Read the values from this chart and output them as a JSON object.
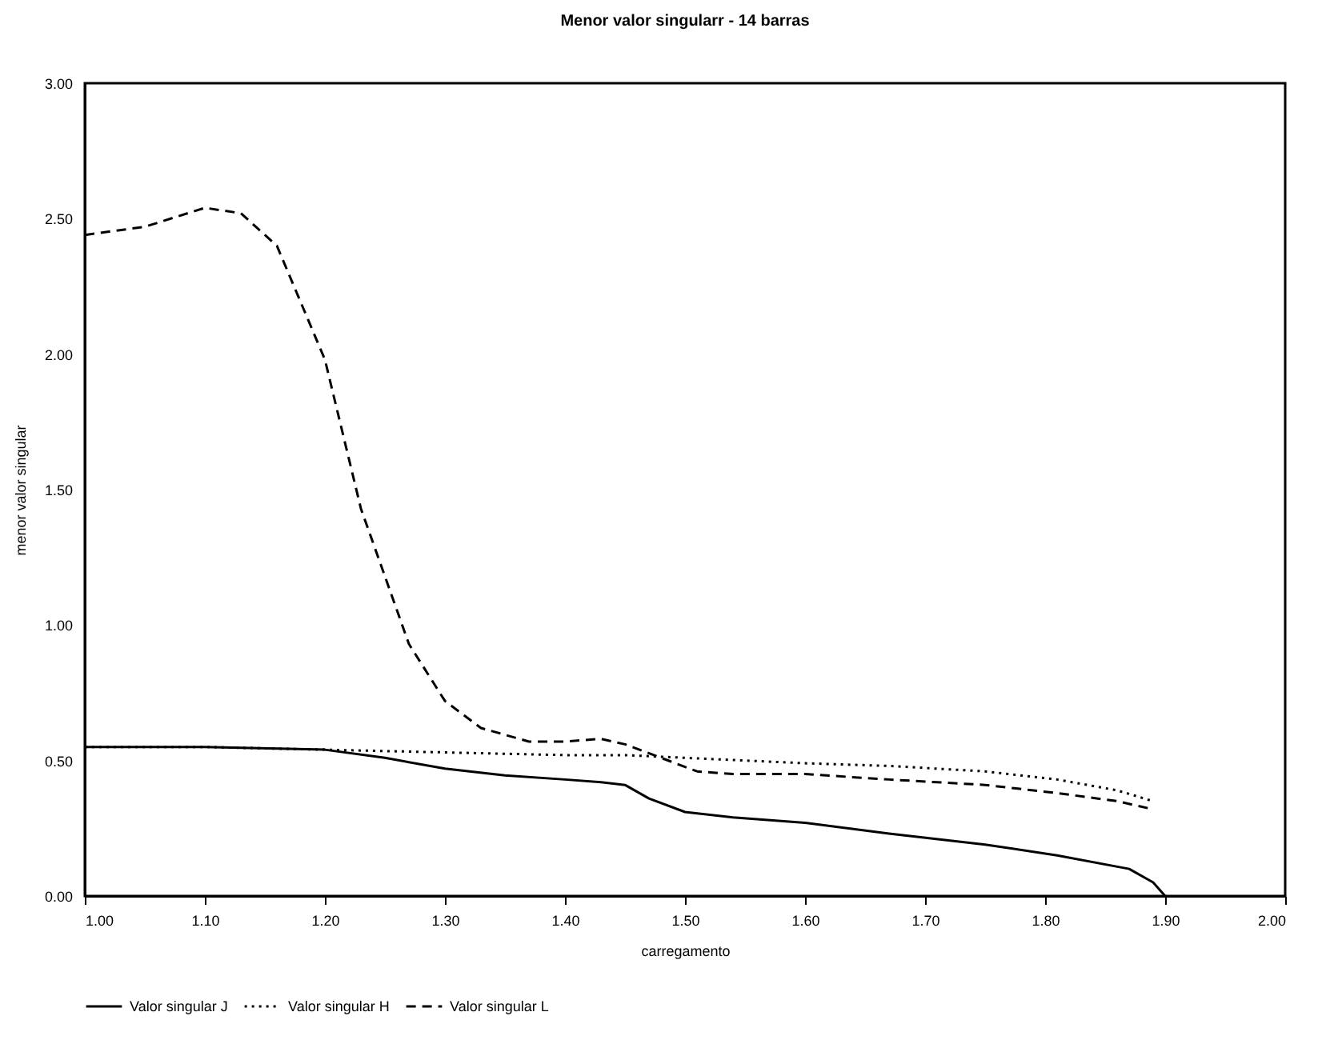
{
  "chart_data": {
    "type": "line",
    "title": "Menor valor singularr - 14 barras",
    "xlabel": "carregamento",
    "ylabel": "menor valor singular",
    "xlim": [
      1.0,
      2.0
    ],
    "xticks": [
      {
        "value": 1.0,
        "label": "1.00"
      },
      {
        "value": 1.1,
        "label": "1.10"
      },
      {
        "value": 1.2,
        "label": "1.20"
      },
      {
        "value": 1.3,
        "label": "1.30"
      },
      {
        "value": 1.4,
        "label": "1.40"
      },
      {
        "value": 1.5,
        "label": "1.50"
      },
      {
        "value": 1.6,
        "label": "1.60"
      },
      {
        "value": 1.7,
        "label": "1.70"
      },
      {
        "value": 1.8,
        "label": "1.80"
      },
      {
        "value": 1.9,
        "label": "1.90"
      },
      {
        "value": 2.0,
        "label": "2.00"
      }
    ],
    "ylim": [
      0,
      3
    ],
    "yticks": [
      {
        "value": 0,
        "label": "0.00"
      },
      {
        "value": 0.5,
        "label": "0.50"
      },
      {
        "value": 1,
        "label": "1.00"
      },
      {
        "value": 1.5,
        "label": "1.50"
      },
      {
        "value": 2,
        "label": "2.00"
      },
      {
        "value": 2.5,
        "label": "2.50"
      },
      {
        "value": 3,
        "label": "3.00"
      }
    ],
    "grid": false,
    "legend": "bottom",
    "marker": "none",
    "series": [
      {
        "name": "Valor singular J",
        "color": "#000000",
        "line_style": "solid",
        "x": [
          1.0,
          1.1,
          1.2,
          1.25,
          1.3,
          1.35,
          1.4,
          1.43,
          1.45,
          1.47,
          1.5,
          1.54,
          1.6,
          1.67,
          1.75,
          1.81,
          1.87,
          1.89,
          1.9
        ],
        "values": [
          0.55,
          0.55,
          0.54,
          0.51,
          0.47,
          0.445,
          0.43,
          0.42,
          0.41,
          0.36,
          0.31,
          0.29,
          0.27,
          0.23,
          0.19,
          0.15,
          0.1,
          0.05,
          0.0
        ]
      },
      {
        "name": "Valor singular H",
        "color": "#000000",
        "line_style": "dotted",
        "x": [
          1.0,
          1.1,
          1.2,
          1.3,
          1.4,
          1.45,
          1.5,
          1.6,
          1.67,
          1.75,
          1.81,
          1.86,
          1.89
        ],
        "values": [
          0.55,
          0.55,
          0.54,
          0.53,
          0.52,
          0.52,
          0.51,
          0.49,
          0.48,
          0.46,
          0.43,
          0.39,
          0.35
        ]
      },
      {
        "name": "Valor singular L",
        "color": "#000000",
        "line_style": "dashed",
        "x": [
          1.0,
          1.05,
          1.1,
          1.13,
          1.16,
          1.2,
          1.23,
          1.27,
          1.3,
          1.33,
          1.37,
          1.4,
          1.43,
          1.45,
          1.48,
          1.51,
          1.54,
          1.6,
          1.67,
          1.75,
          1.81,
          1.86,
          1.89
        ],
        "values": [
          2.44,
          2.47,
          2.54,
          2.52,
          2.4,
          1.98,
          1.43,
          0.93,
          0.72,
          0.62,
          0.57,
          0.57,
          0.58,
          0.56,
          0.51,
          0.46,
          0.45,
          0.45,
          0.43,
          0.41,
          0.38,
          0.35,
          0.32
        ]
      }
    ]
  }
}
